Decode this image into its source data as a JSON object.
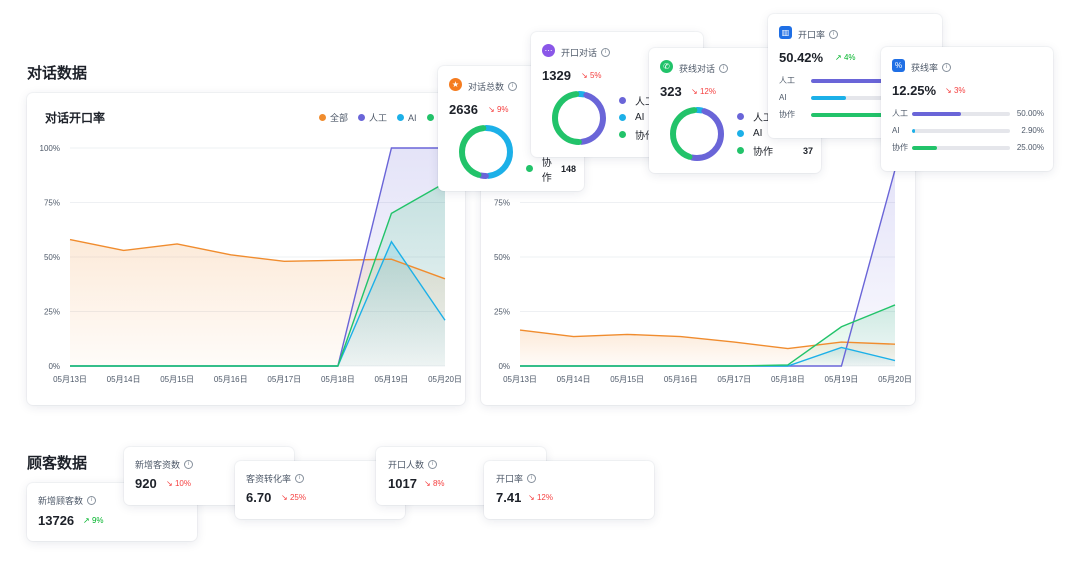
{
  "sections": {
    "dialogue_title": "对话数据",
    "customer_title": "顾客数据"
  },
  "colors": {
    "all": "#f08c2e",
    "human": "#6a65d8",
    "ai": "#1cb0e8",
    "green": "#22c36a",
    "down": "#f53f3f",
    "up": "#00b42a"
  },
  "legend": {
    "all": "全部",
    "human": "人工",
    "ai": "AI"
  },
  "chart_data": [
    {
      "type": "line",
      "title": "对话开口率",
      "x": [
        "05月13日",
        "05月14日",
        "05月15日",
        "05月16日",
        "05月17日",
        "05月18日",
        "05月19日",
        "05月20日"
      ],
      "yticks": [
        "0%",
        "25%",
        "50%",
        "75%",
        "100%"
      ],
      "ylim": [
        0,
        100
      ],
      "series": [
        {
          "name": "全部",
          "values": [
            58,
            53,
            56,
            51,
            48,
            48.5,
            49,
            40
          ]
        },
        {
          "name": "人工",
          "values": [
            0,
            0,
            0,
            0,
            0,
            0,
            100,
            100
          ]
        },
        {
          "name": "AI",
          "values": [
            0,
            0,
            0,
            0,
            0,
            0,
            57,
            21
          ]
        },
        {
          "name": "",
          "values": [
            0,
            0,
            0,
            0,
            0,
            0,
            70,
            84
          ]
        }
      ]
    },
    {
      "type": "line",
      "title": "",
      "x": [
        "05月13日",
        "05月14日",
        "05月15日",
        "05月16日",
        "05月17日",
        "05月18日",
        "05月19日",
        "05月20日"
      ],
      "yticks": [
        "0%",
        "25%",
        "50%",
        "75%"
      ],
      "ylim": [
        0,
        100
      ],
      "series": [
        {
          "name": "全部",
          "values": [
            16.5,
            13.5,
            14.5,
            13.5,
            11,
            8,
            11,
            10
          ]
        },
        {
          "name": "人工",
          "values": [
            0,
            0,
            0,
            0,
            0,
            0,
            0,
            90
          ]
        },
        {
          "name": "AI",
          "values": [
            0,
            0,
            0,
            0,
            0,
            0,
            8.5,
            2.5
          ]
        },
        {
          "name": "",
          "values": [
            0,
            0,
            0,
            0,
            0,
            0.5,
            18,
            28
          ]
        }
      ]
    }
  ],
  "cards": {
    "total": {
      "label": "对话总数",
      "value": "2636",
      "change": "9%",
      "donut": [
        50,
        5,
        45
      ],
      "rows": [
        {
          "name": "协作",
          "value": "148"
        }
      ]
    },
    "opened": {
      "label": "开口对话",
      "value": "1329",
      "change": "5%",
      "donut": [
        5,
        45,
        50
      ],
      "rows": [
        {
          "name": "人工"
        },
        {
          "name": "AI"
        },
        {
          "name": "协作"
        }
      ]
    },
    "leads": {
      "label": "获线对话",
      "value": "323",
      "change": "12%",
      "donut": [
        5,
        50,
        45
      ],
      "rows": [
        {
          "name": "人工"
        },
        {
          "name": "AI"
        },
        {
          "name": "协作",
          "value": "37"
        }
      ]
    },
    "open_rate": {
      "label": "开口率",
      "value": "50.42%",
      "change": "4%",
      "bars": [
        {
          "name": "人工",
          "pct": 100
        },
        {
          "name": "AI",
          "pct": 30
        },
        {
          "name": "协作",
          "pct": 100
        }
      ]
    },
    "lead_rate": {
      "label": "获线率",
      "value": "12.25%",
      "change": "3%",
      "bars": [
        {
          "name": "人工",
          "pct": 50,
          "value": "50.00%"
        },
        {
          "name": "AI",
          "pct": 2.9,
          "value": "2.90%"
        },
        {
          "name": "协作",
          "pct": 25,
          "value": "25.00%"
        }
      ]
    }
  },
  "customer": {
    "new_customers": {
      "label": "新增顾客数",
      "value": "13726",
      "change": "9%"
    },
    "new_leads": {
      "label": "新增客资数",
      "value": "920",
      "change": "10%"
    },
    "conversion": {
      "label": "客资转化率",
      "value": "6.70",
      "change": "25%"
    },
    "openers": {
      "label": "开口人数",
      "value": "1017",
      "change": "8%"
    },
    "open_rate": {
      "label": "开口率",
      "value": "7.41",
      "change": "12%"
    }
  }
}
